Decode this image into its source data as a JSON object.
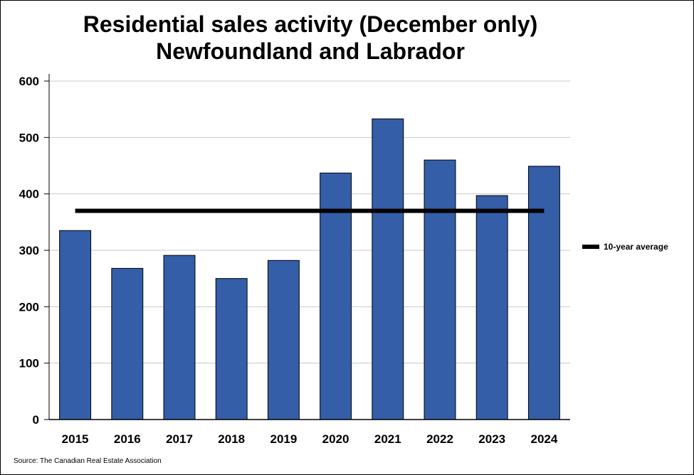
{
  "chart_data": {
    "type": "bar",
    "title_line1": "Residential sales activity (December only)",
    "title_line2": "Newfoundland and Labrador",
    "categories": [
      "2015",
      "2016",
      "2017",
      "2018",
      "2019",
      "2020",
      "2021",
      "2022",
      "2023",
      "2024"
    ],
    "values": [
      335,
      268,
      291,
      250,
      282,
      437,
      533,
      460,
      397,
      449
    ],
    "reference_line": {
      "name": "10-year average",
      "value": 370
    },
    "ylim": [
      0,
      600
    ],
    "yticks": [
      0,
      100,
      200,
      300,
      400,
      500,
      600
    ],
    "grid": true,
    "legend": "right",
    "bar_color": "#345ea8",
    "line_color": "#000000",
    "source": "Source: The Canadian Real Estate Association"
  }
}
